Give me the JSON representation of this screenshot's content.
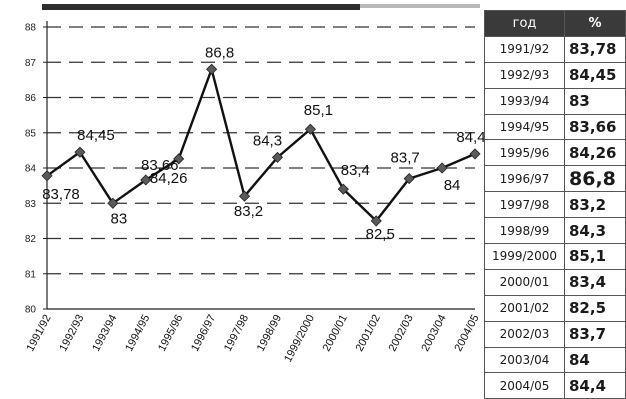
{
  "chart_data": {
    "type": "line",
    "title": "",
    "xlabel": "",
    "ylabel": "",
    "ylim": [
      80,
      88
    ],
    "y_ticks": [
      80,
      81,
      82,
      83,
      84,
      85,
      86,
      87,
      88
    ],
    "grid": "dashed horizontal",
    "categories": [
      "1991/92",
      "1992/93",
      "1993/94",
      "1994/95",
      "1995/96",
      "1996/97",
      "1997/98",
      "1998/99",
      "1999/2000",
      "2000/01",
      "2001/02",
      "2002/03",
      "2003/04",
      "2004/05"
    ],
    "values": [
      83.78,
      84.45,
      83,
      83.66,
      84.26,
      86.8,
      83.2,
      84.3,
      85.1,
      83.4,
      82.5,
      83.7,
      84,
      84.4
    ],
    "data_labels": [
      "83,78",
      "84,45",
      "83",
      "83,66",
      "84,26",
      "86,8",
      "83,2",
      "84,3",
      "85,1",
      "83,4",
      "82,5",
      "83,7",
      "84",
      "84,4"
    ],
    "line_color": "#111111",
    "marker_color": "#5a5a5a"
  },
  "table": {
    "headers": [
      "год",
      "%"
    ],
    "rows": [
      {
        "year": "1991/92",
        "value": "83,78"
      },
      {
        "year": "1992/93",
        "value": "84,45"
      },
      {
        "year": "1993/94",
        "value": "83"
      },
      {
        "year": "1994/95",
        "value": "83,66"
      },
      {
        "year": "1995/96",
        "value": "84,26"
      },
      {
        "year": "1996/97",
        "value": "86,8"
      },
      {
        "year": "1997/98",
        "value": "83,2"
      },
      {
        "year": "1998/99",
        "value": "84,3"
      },
      {
        "year": "1999/2000",
        "value": "85,1"
      },
      {
        "year": "2000/01",
        "value": "83,4"
      },
      {
        "year": "2001/02",
        "value": "82,5"
      },
      {
        "year": "2002/03",
        "value": "83,7"
      },
      {
        "year": "2003/04",
        "value": "84"
      },
      {
        "year": "2004/05",
        "value": "84,4"
      }
    ]
  },
  "colors": {
    "header_bg": "#3a3a3a",
    "header_text": "#ffffff",
    "table_border": "#555555"
  }
}
